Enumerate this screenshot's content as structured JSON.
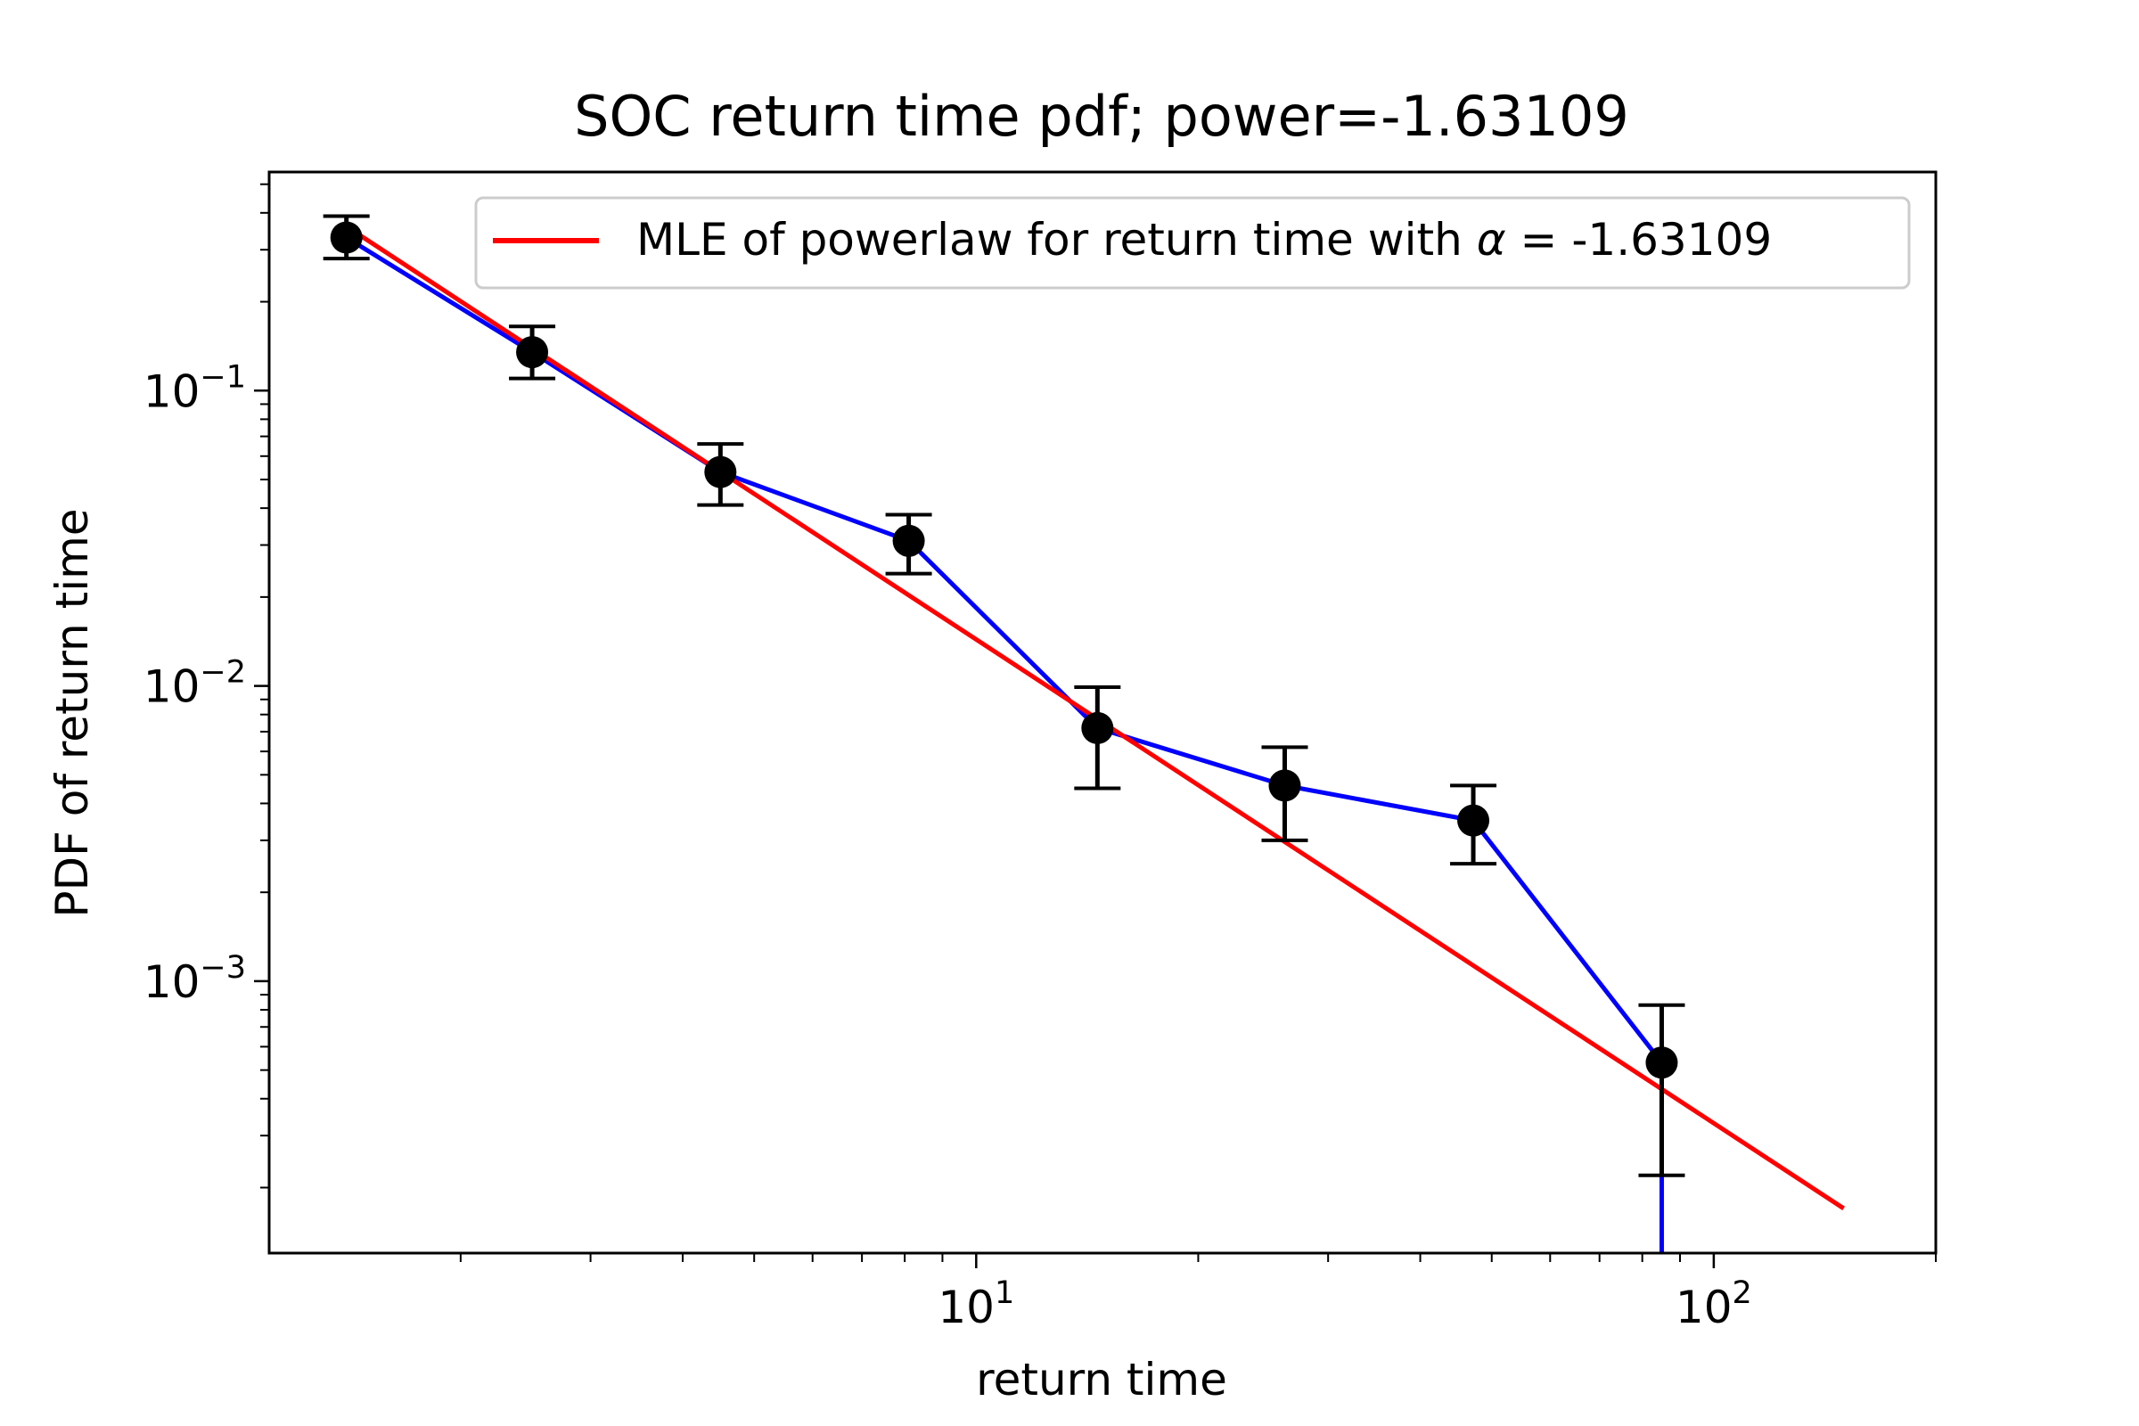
{
  "chart_data": {
    "type": "line",
    "title": "SOC return time pdf; power=-1.63109",
    "xlabel": "return time",
    "ylabel": "PDF of return time",
    "xscale": "log",
    "yscale": "log",
    "xlim": [
      1.1,
      200
    ],
    "ylim": [
      0.00012,
      0.55
    ],
    "x_ticks": [
      {
        "value": 10,
        "label": "10^1",
        "base": "10",
        "exp": "1"
      },
      {
        "value": 100,
        "label": "10^2",
        "base": "10",
        "exp": "2"
      }
    ],
    "y_ticks": [
      {
        "value": 0.1,
        "label": "10^-1",
        "base": "10",
        "exp": "−1"
      },
      {
        "value": 0.01,
        "label": "10^-2",
        "base": "10",
        "exp": "−2"
      },
      {
        "value": 0.001,
        "label": "10^-3",
        "base": "10",
        "exp": "−3"
      }
    ],
    "grid": false,
    "legend": {
      "position": "top-right",
      "text": "MLE of powerlaw for return time with ",
      "alpha_symbol": "α",
      "alpha_value": " = -1.63109"
    },
    "series": [
      {
        "type": "errorbar-line",
        "color": "#0000ff",
        "marker_color": "#000000",
        "x": [
          1.4,
          2.5,
          4.5,
          8.1,
          14.6,
          26.2,
          47.2,
          85.0
        ],
        "y": [
          0.33,
          0.135,
          0.053,
          0.031,
          0.0072,
          0.0046,
          0.0035,
          0.00053
        ],
        "y_upper": [
          0.39,
          0.165,
          0.066,
          0.038,
          0.0099,
          0.0062,
          0.0046,
          0.00083
        ],
        "y_lower": [
          0.28,
          0.11,
          0.041,
          0.024,
          0.0045,
          0.003,
          0.0025,
          0.00022
        ]
      },
      {
        "name": "MLE of powerlaw for return time with α = -1.63109",
        "type": "fit-line",
        "color": "#ff0000",
        "alpha": -1.63109,
        "x": [
          1.4,
          150
        ],
        "y": [
          0.36,
          0.00017
        ]
      }
    ]
  }
}
